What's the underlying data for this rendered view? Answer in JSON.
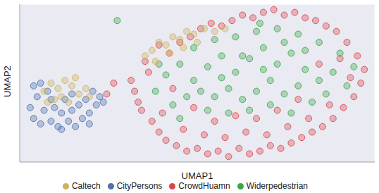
{
  "chart_data": {
    "type": "scatter",
    "x_label": "UMAP1",
    "y_label": "UMAP2",
    "xlim": [
      0,
      10.2
    ],
    "ylim": [
      0,
      5.8
    ],
    "xticks": [
      1,
      3,
      5,
      7,
      9
    ],
    "yticks": [
      1,
      2,
      3,
      4,
      5
    ],
    "grid": true,
    "tick_labels": false,
    "legend": "bottom",
    "marker": "circle",
    "series": [
      {
        "name": "CrowdHuamn",
        "color": "#d9474e",
        "x": [
          3.2,
          3.4,
          3.6,
          3.3,
          3.8,
          4.0,
          4.2,
          4.5,
          4.8,
          5.1,
          5.4,
          5.7,
          6.0,
          6.3,
          6.6,
          6.9,
          7.2,
          7.5,
          7.8,
          8.1,
          8.4,
          8.7,
          9.0,
          9.3,
          9.6,
          9.8,
          9.9,
          9.7,
          9.4,
          9.1,
          8.8,
          8.5,
          8.2,
          7.9,
          7.6,
          7.3,
          7.0,
          6.7,
          6.4,
          6.1,
          5.8,
          5.5,
          5.2,
          4.9,
          4.6,
          4.3,
          4.0,
          3.7,
          3.5,
          4.1,
          4.7,
          5.3,
          5.9,
          6.5,
          7.1,
          7.7,
          8.3,
          8.9,
          9.5,
          4.4,
          5.0,
          5.6,
          6.2,
          6.8,
          7.4,
          8.0,
          8.6,
          9.2,
          2.5,
          2.7
        ],
        "y": [
          3.0,
          2.2,
          3.7,
          2.6,
          1.5,
          1.1,
          0.8,
          0.6,
          0.4,
          0.5,
          0.3,
          0.4,
          0.2,
          0.5,
          0.3,
          0.4,
          0.6,
          0.5,
          0.7,
          0.9,
          1.1,
          1.3,
          1.6,
          2.0,
          2.4,
          2.9,
          3.4,
          3.9,
          4.4,
          4.8,
          5.0,
          5.2,
          5.3,
          5.5,
          5.4,
          5.6,
          5.5,
          5.3,
          5.4,
          5.2,
          5.0,
          5.1,
          4.9,
          4.6,
          4.4,
          4.0,
          4.3,
          3.3,
          1.9,
          1.8,
          1.2,
          1.0,
          0.9,
          1.1,
          1.0,
          1.3,
          1.6,
          2.1,
          3.1,
          2.7,
          2.0,
          1.5,
          1.7,
          1.6,
          1.9,
          2.3,
          3.6,
          3.8,
          2.5,
          2.9
        ]
      },
      {
        "name": "CityPersons",
        "color": "#4c72b0",
        "x": [
          0.3,
          0.4,
          0.5,
          0.6,
          0.7,
          0.8,
          0.9,
          1.0,
          1.1,
          1.2,
          1.3,
          1.4,
          1.5,
          1.6,
          1.7,
          1.8,
          1.9,
          2.0,
          2.1,
          2.2,
          2.3,
          0.4,
          0.6,
          1.2,
          2.0,
          0.9,
          1.5,
          2.4
        ],
        "y": [
          2.0,
          1.6,
          2.4,
          1.4,
          1.9,
          2.6,
          1.5,
          2.0,
          1.3,
          1.8,
          2.3,
          1.5,
          1.9,
          1.3,
          2.1,
          1.6,
          2.3,
          1.8,
          2.6,
          2.1,
          2.4,
          2.8,
          2.9,
          1.2,
          1.4,
          2.3,
          2.5,
          2.2
        ]
      },
      {
        "name": "Widerpedestrian",
        "color": "#3aa64a",
        "x": [
          4.2,
          4.6,
          5.0,
          5.4,
          5.8,
          6.2,
          6.6,
          7.0,
          7.4,
          7.8,
          8.2,
          8.6,
          9.0,
          9.4,
          8.8,
          8.4,
          8.0,
          7.6,
          7.2,
          6.8,
          6.4,
          6.0,
          5.6,
          5.2,
          4.8,
          4.4,
          5.0,
          5.6,
          6.2,
          6.8,
          7.4,
          8.0,
          8.6,
          9.2,
          6.0,
          6.6,
          7.2,
          7.8,
          5.4,
          4.6,
          6.4,
          7.0,
          7.6,
          8.2,
          5.8,
          9.6,
          3.9,
          4.0,
          6.9,
          2.8
        ],
        "y": [
          3.2,
          3.6,
          3.0,
          3.5,
          3.9,
          3.3,
          3.8,
          4.2,
          3.6,
          4.0,
          3.4,
          3.0,
          3.3,
          2.8,
          2.5,
          2.2,
          2.8,
          2.5,
          3.0,
          2.6,
          2.3,
          2.7,
          2.4,
          2.6,
          2.4,
          2.1,
          4.2,
          4.5,
          4.6,
          4.8,
          4.9,
          4.7,
          4.4,
          4.0,
          1.8,
          1.9,
          2.1,
          1.8,
          1.9,
          1.6,
          3.9,
          3.4,
          4.4,
          4.1,
          3.1,
          3.5,
          2.6,
          3.6,
          5.1,
          5.2
        ]
      },
      {
        "name": "Caltech",
        "color": "#ccb45c",
        "x": [
          0.7,
          0.9,
          1.1,
          1.3,
          1.5,
          1.7,
          1.9,
          1.2,
          1.6,
          2.0,
          1.0,
          1.4,
          0.8,
          3.6,
          3.8,
          4.0,
          4.2,
          4.4,
          4.6,
          4.8,
          5.0,
          5.3,
          5.6,
          5.9,
          4.3,
          4.7,
          3.9,
          5.1
        ],
        "y": [
          2.6,
          2.9,
          2.7,
          3.0,
          2.8,
          2.5,
          2.7,
          2.4,
          3.1,
          2.4,
          2.3,
          2.2,
          2.2,
          3.9,
          4.1,
          4.4,
          4.3,
          4.6,
          4.5,
          4.8,
          4.7,
          4.9,
          4.8,
          4.9,
          4.0,
          4.2,
          3.7,
          4.4
        ]
      }
    ]
  }
}
